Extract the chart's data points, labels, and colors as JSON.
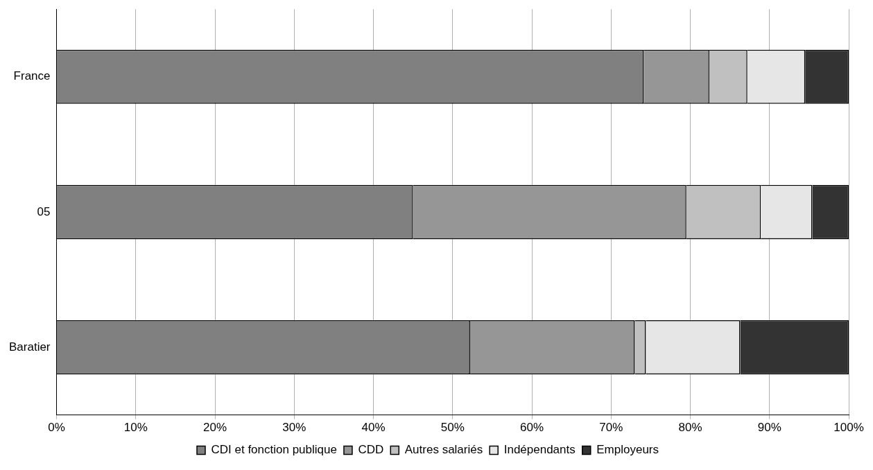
{
  "chart_data": {
    "type": "bar",
    "orientation": "horizontal",
    "stacked": true,
    "categories": [
      "France",
      "05",
      "Baratier"
    ],
    "series": [
      {
        "name": "CDI et fonction publique",
        "color": "#808080",
        "values": [
          74.1,
          45.0,
          52.2
        ]
      },
      {
        "name": "CDD",
        "color": "#969696",
        "values": [
          8.3,
          34.5,
          20.8
        ]
      },
      {
        "name": "Autres salariés",
        "color": "#c0c0c0",
        "values": [
          4.8,
          9.4,
          1.4
        ]
      },
      {
        "name": "Indépendants",
        "color": "#e6e6e6",
        "values": [
          7.3,
          6.5,
          11.9
        ]
      },
      {
        "name": "Employeurs",
        "color": "#333333",
        "values": [
          5.5,
          4.6,
          13.7
        ]
      }
    ],
    "xlim": [
      0,
      100
    ],
    "xticks": [
      {
        "value": 0,
        "label": "0%"
      },
      {
        "value": 10,
        "label": "10%"
      },
      {
        "value": 20,
        "label": "20%"
      },
      {
        "value": 30,
        "label": "30%"
      },
      {
        "value": 40,
        "label": "40%"
      },
      {
        "value": 50,
        "label": "50%"
      },
      {
        "value": 60,
        "label": "60%"
      },
      {
        "value": 70,
        "label": "70%"
      },
      {
        "value": 80,
        "label": "80%"
      },
      {
        "value": 90,
        "label": "90%"
      },
      {
        "value": 100,
        "label": "100%"
      }
    ],
    "grid": "x",
    "legend": "bottom"
  }
}
